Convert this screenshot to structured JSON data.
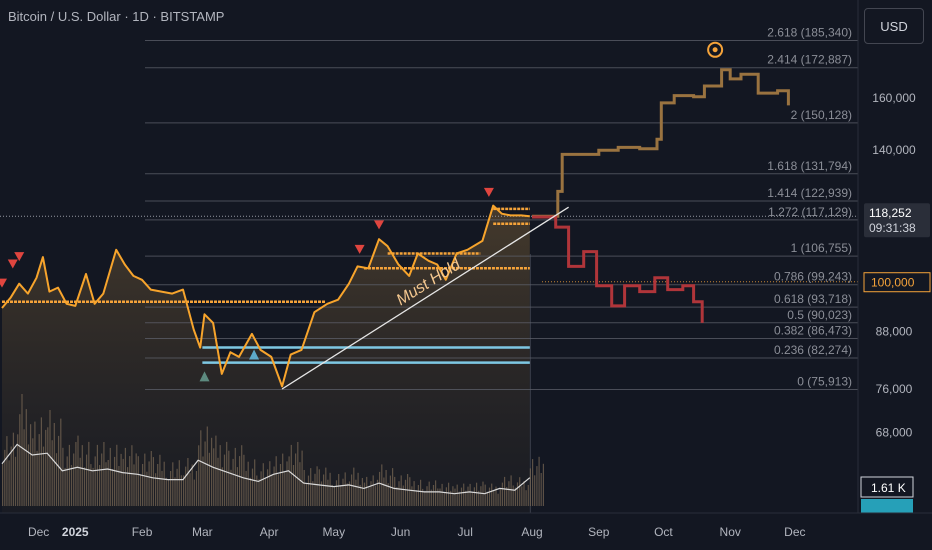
{
  "header": {
    "title": "Bitcoin / U.S. Dollar · 1D · BITSTAMP"
  },
  "currency_button": {
    "label": "USD"
  },
  "chart_data": {
    "type": "line",
    "price_axis": {
      "ticks": [
        {
          "value": 160000,
          "label": "160,000"
        },
        {
          "value": 140000,
          "label": "140,000"
        },
        {
          "value": 88000,
          "label": "88,000"
        },
        {
          "value": 76000,
          "label": "76,000"
        },
        {
          "value": 68000,
          "label": "68,000"
        }
      ],
      "current_price": {
        "value": 118252,
        "label": "118,252",
        "countdown": "09:31:38"
      },
      "marked_level": {
        "value": 100000,
        "label": "100,000"
      },
      "volume_label": "1.61 K"
    },
    "time_axis": {
      "ticks": [
        {
          "date": "2024-12-15",
          "label": "Dec"
        },
        {
          "date": "2025-01-01",
          "label": "2025",
          "bold": true
        },
        {
          "date": "2025-02-01",
          "label": "Feb"
        },
        {
          "date": "2025-03-01",
          "label": "Mar"
        },
        {
          "date": "2025-04-01",
          "label": "Apr"
        },
        {
          "date": "2025-05-01",
          "label": "May"
        },
        {
          "date": "2025-06-01",
          "label": "Jun"
        },
        {
          "date": "2025-07-01",
          "label": "Jul"
        },
        {
          "date": "2025-08-01",
          "label": "Aug"
        },
        {
          "date": "2025-09-01",
          "label": "Sep"
        },
        {
          "date": "2025-10-01",
          "label": "Oct"
        },
        {
          "date": "2025-11-01",
          "label": "Nov"
        },
        {
          "date": "2025-12-01",
          "label": "Dec"
        }
      ]
    },
    "fib_levels": [
      {
        "ratio": "2.618",
        "price": 185340,
        "label": "2.618 (185,340)"
      },
      {
        "ratio": "2.414",
        "price": 172887,
        "label": "2.414 (172,887)"
      },
      {
        "ratio": "2",
        "price": 150128,
        "label": "2 (150,128)"
      },
      {
        "ratio": "1.618",
        "price": 131794,
        "label": "1.618 (131,794)"
      },
      {
        "ratio": "1.414",
        "price": 122939,
        "label": "1.414 (122,939)"
      },
      {
        "ratio": "1.272",
        "price": 117129,
        "label": "1.272 (117,129)"
      },
      {
        "ratio": "1",
        "price": 106755,
        "label": "1 (106,755)"
      },
      {
        "ratio": "0.786",
        "price": 99243,
        "label": "0.786 (99,243)"
      },
      {
        "ratio": "0.618",
        "price": 93718,
        "label": "0.618 (93,718)"
      },
      {
        "ratio": "0.5",
        "price": 90023,
        "label": "0.5 (90,023)"
      },
      {
        "ratio": "0.382",
        "price": 86473,
        "label": "0.382 (86,473)"
      },
      {
        "ratio": "0.236",
        "price": 82274,
        "label": "0.236 (82,274)"
      },
      {
        "ratio": "0",
        "price": 75913,
        "label": "0 (75,913)"
      }
    ],
    "price_series": [
      {
        "date": "2024-11-28",
        "price": 93500
      },
      {
        "date": "2024-12-02",
        "price": 96000
      },
      {
        "date": "2024-12-06",
        "price": 99500
      },
      {
        "date": "2024-12-10",
        "price": 97000
      },
      {
        "date": "2024-12-14",
        "price": 101000
      },
      {
        "date": "2024-12-17",
        "price": 106500
      },
      {
        "date": "2024-12-20",
        "price": 97500
      },
      {
        "date": "2024-12-24",
        "price": 98500
      },
      {
        "date": "2024-12-28",
        "price": 94500
      },
      {
        "date": "2025-01-01",
        "price": 94000
      },
      {
        "date": "2025-01-06",
        "price": 102000
      },
      {
        "date": "2025-01-10",
        "price": 94500
      },
      {
        "date": "2025-01-14",
        "price": 97000
      },
      {
        "date": "2025-01-20",
        "price": 108500
      },
      {
        "date": "2025-01-24",
        "price": 104500
      },
      {
        "date": "2025-01-28",
        "price": 101500
      },
      {
        "date": "2025-02-01",
        "price": 100500
      },
      {
        "date": "2025-02-05",
        "price": 98000
      },
      {
        "date": "2025-02-10",
        "price": 97500
      },
      {
        "date": "2025-02-15",
        "price": 97000
      },
      {
        "date": "2025-02-20",
        "price": 98000
      },
      {
        "date": "2025-02-25",
        "price": 88500
      },
      {
        "date": "2025-02-28",
        "price": 84500
      },
      {
        "date": "2025-03-02",
        "price": 92000
      },
      {
        "date": "2025-03-06",
        "price": 90000
      },
      {
        "date": "2025-03-10",
        "price": 79000
      },
      {
        "date": "2025-03-14",
        "price": 83500
      },
      {
        "date": "2025-03-18",
        "price": 82500
      },
      {
        "date": "2025-03-24",
        "price": 87500
      },
      {
        "date": "2025-03-28",
        "price": 84000
      },
      {
        "date": "2025-04-02",
        "price": 82500
      },
      {
        "date": "2025-04-07",
        "price": 76500
      },
      {
        "date": "2025-04-11",
        "price": 83000
      },
      {
        "date": "2025-04-16",
        "price": 84000
      },
      {
        "date": "2025-04-22",
        "price": 92500
      },
      {
        "date": "2025-04-28",
        "price": 94500
      },
      {
        "date": "2025-05-03",
        "price": 95500
      },
      {
        "date": "2025-05-08",
        "price": 99500
      },
      {
        "date": "2025-05-12",
        "price": 104000
      },
      {
        "date": "2025-05-17",
        "price": 103500
      },
      {
        "date": "2025-05-22",
        "price": 111500
      },
      {
        "date": "2025-05-26",
        "price": 109500
      },
      {
        "date": "2025-05-31",
        "price": 104500
      },
      {
        "date": "2025-06-05",
        "price": 101500
      },
      {
        "date": "2025-06-09",
        "price": 107500
      },
      {
        "date": "2025-06-14",
        "price": 105500
      },
      {
        "date": "2025-06-18",
        "price": 104500
      },
      {
        "date": "2025-06-22",
        "price": 100500
      },
      {
        "date": "2025-06-27",
        "price": 107500
      },
      {
        "date": "2025-07-02",
        "price": 108500
      },
      {
        "date": "2025-07-09",
        "price": 111000
      },
      {
        "date": "2025-07-14",
        "price": 121500
      },
      {
        "date": "2025-07-18",
        "price": 119000
      },
      {
        "date": "2025-07-22",
        "price": 118500
      },
      {
        "date": "2025-07-27",
        "price": 118500
      },
      {
        "date": "2025-07-31",
        "price": 118252
      }
    ],
    "projection_up": [
      {
        "date": "2025-08-01",
        "price": 118252
      },
      {
        "date": "2025-08-13",
        "price": 126000
      },
      {
        "date": "2025-08-15",
        "price": 138500
      },
      {
        "date": "2025-09-01",
        "price": 140000
      },
      {
        "date": "2025-09-10",
        "price": 141000
      },
      {
        "date": "2025-09-20",
        "price": 140500
      },
      {
        "date": "2025-09-28",
        "price": 144000
      },
      {
        "date": "2025-09-30",
        "price": 158000
      },
      {
        "date": "2025-10-06",
        "price": 161000
      },
      {
        "date": "2025-10-15",
        "price": 160500
      },
      {
        "date": "2025-10-20",
        "price": 165000
      },
      {
        "date": "2025-10-28",
        "price": 172000
      },
      {
        "date": "2025-11-01",
        "price": 168000
      },
      {
        "date": "2025-11-06",
        "price": 170000
      },
      {
        "date": "2025-11-14",
        "price": 162000
      },
      {
        "date": "2025-11-23",
        "price": 163000
      },
      {
        "date": "2025-11-28",
        "price": 157000
      }
    ],
    "projection_down": [
      {
        "date": "2025-08-01",
        "price": 118000
      },
      {
        "date": "2025-08-12",
        "price": 115000
      },
      {
        "date": "2025-08-18",
        "price": 104000
      },
      {
        "date": "2025-08-25",
        "price": 108000
      },
      {
        "date": "2025-08-31",
        "price": 99000
      },
      {
        "date": "2025-09-07",
        "price": 94000
      },
      {
        "date": "2025-09-13",
        "price": 99000
      },
      {
        "date": "2025-09-20",
        "price": 97500
      },
      {
        "date": "2025-09-27",
        "price": 101000
      },
      {
        "date": "2025-10-03",
        "price": 98000
      },
      {
        "date": "2025-10-10",
        "price": 99000
      },
      {
        "date": "2025-10-15",
        "price": 95000
      },
      {
        "date": "2025-10-19",
        "price": 90000
      }
    ],
    "support_levels": [
      {
        "from": "2024-11-28",
        "to": "2025-04-27",
        "price": 95000,
        "color": "#f5a33a"
      },
      {
        "from": "2025-03-01",
        "to": "2025-07-31",
        "price": 84500,
        "color": "#7ec8e3"
      },
      {
        "from": "2025-03-01",
        "to": "2025-07-31",
        "price": 81300,
        "color": "#7ec8e3"
      },
      {
        "from": "2025-05-26",
        "to": "2025-07-08",
        "price": 107500,
        "color": "#f5a33a"
      },
      {
        "from": "2025-05-15",
        "to": "2025-07-31",
        "price": 103500,
        "color": "#f5a33a"
      },
      {
        "from": "2025-07-14",
        "to": "2025-07-31",
        "price": 120500,
        "color": "#f5a33a"
      },
      {
        "from": "2025-07-14",
        "to": "2025-07-31",
        "price": 116000,
        "color": "#f5a33a"
      }
    ],
    "trendline": {
      "from": {
        "date": "2025-04-07",
        "price": 76000
      },
      "to": {
        "date": "2025-08-18",
        "price": 121000
      },
      "label": "Must Hold"
    },
    "markers_down": [
      {
        "date": "2024-11-28",
        "price": 99500
      },
      {
        "date": "2024-12-03",
        "price": 104500
      },
      {
        "date": "2024-12-06",
        "price": 106500
      },
      {
        "date": "2025-05-13",
        "price": 108500
      },
      {
        "date": "2025-05-22",
        "price": 115500
      },
      {
        "date": "2025-07-12",
        "price": 125500
      }
    ],
    "markers_up": [
      {
        "date": "2025-03-02",
        "price": 78500,
        "color": "#5d8a7f"
      },
      {
        "date": "2025-03-25",
        "price": 83000,
        "color": "#5da9c9"
      }
    ],
    "peak_marker": {
      "date": "2025-10-25",
      "price": 181000
    },
    "volume_bars": [
      {
        "date": "2024-11-28",
        "volume": 2.4
      },
      {
        "date": "2024-12-05",
        "volume": 3.5
      },
      {
        "date": "2024-12-12",
        "volume": 2.9
      },
      {
        "date": "2024-12-19",
        "volume": 3.0
      },
      {
        "date": "2024-12-26",
        "volume": 2.0
      },
      {
        "date": "2025-01-02",
        "volume": 2.2
      },
      {
        "date": "2025-01-09",
        "volume": 2.0
      },
      {
        "date": "2025-01-16",
        "volume": 2.1
      },
      {
        "date": "2025-01-23",
        "volume": 1.9
      },
      {
        "date": "2025-01-30",
        "volume": 1.8
      },
      {
        "date": "2025-02-06",
        "volume": 1.6
      },
      {
        "date": "2025-02-13",
        "volume": 1.5
      },
      {
        "date": "2025-02-20",
        "volume": 1.5
      },
      {
        "date": "2025-02-27",
        "volume": 2.6
      },
      {
        "date": "2025-03-06",
        "volume": 2.2
      },
      {
        "date": "2025-03-13",
        "volume": 1.9
      },
      {
        "date": "2025-03-20",
        "volume": 1.6
      },
      {
        "date": "2025-03-27",
        "volume": 1.4
      },
      {
        "date": "2025-04-03",
        "volume": 1.8
      },
      {
        "date": "2025-04-10",
        "volume": 2.0
      },
      {
        "date": "2025-04-17",
        "volume": 1.3
      },
      {
        "date": "2025-04-24",
        "volume": 1.2
      },
      {
        "date": "2025-05-01",
        "volume": 1.1
      },
      {
        "date": "2025-05-08",
        "volume": 1.2
      },
      {
        "date": "2025-05-15",
        "volume": 1.0
      },
      {
        "date": "2025-05-22",
        "volume": 1.3
      },
      {
        "date": "2025-05-29",
        "volume": 1.0
      },
      {
        "date": "2025-06-05",
        "volume": 0.9
      },
      {
        "date": "2025-06-12",
        "volume": 0.8
      },
      {
        "date": "2025-06-19",
        "volume": 0.8
      },
      {
        "date": "2025-06-26",
        "volume": 0.7
      },
      {
        "date": "2025-07-03",
        "volume": 0.8
      },
      {
        "date": "2025-07-10",
        "volume": 0.7
      },
      {
        "date": "2025-07-17",
        "volume": 1.0
      },
      {
        "date": "2025-07-24",
        "volume": 0.9
      },
      {
        "date": "2025-07-31",
        "volume": 1.61
      }
    ]
  }
}
